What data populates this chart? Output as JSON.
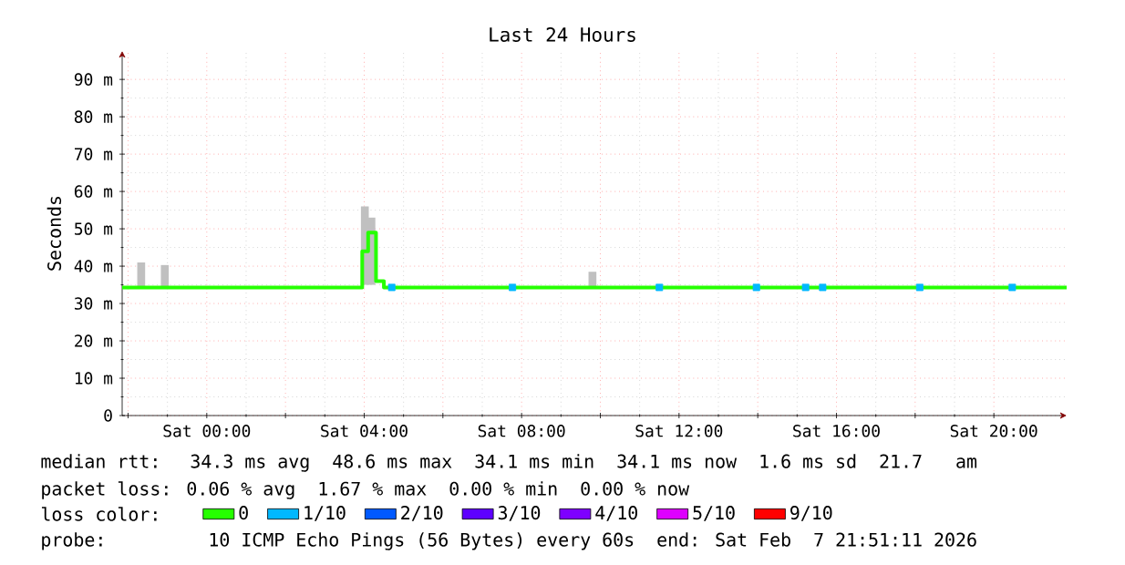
{
  "chart_data": {
    "type": "line",
    "title": "Last 24 Hours",
    "ylabel": "Seconds",
    "xlim": [
      "2026-02-06T21:51",
      "2026-02-07T21:51"
    ],
    "ylim": [
      0,
      97.6
    ],
    "xticks": [
      {
        "value": "2026-02-06T22:00",
        "label": null
      },
      {
        "value": "2026-02-07T00:00",
        "label": "Sat 00:00"
      },
      {
        "value": "2026-02-07T02:00",
        "label": null
      },
      {
        "value": "2026-02-07T04:00",
        "label": "Sat 04:00"
      },
      {
        "value": "2026-02-07T06:00",
        "label": null
      },
      {
        "value": "2026-02-07T08:00",
        "label": "Sat 08:00"
      },
      {
        "value": "2026-02-07T10:00",
        "label": null
      },
      {
        "value": "2026-02-07T12:00",
        "label": "Sat 12:00"
      },
      {
        "value": "2026-02-07T14:00",
        "label": null
      },
      {
        "value": "2026-02-07T16:00",
        "label": "Sat 16:00"
      },
      {
        "value": "2026-02-07T18:00",
        "label": null
      },
      {
        "value": "2026-02-07T20:00",
        "label": "Sat 20:00"
      }
    ],
    "yticks": [
      {
        "value": 0,
        "label": "0"
      },
      {
        "value": 10,
        "label": "10 m"
      },
      {
        "value": 20,
        "label": "20 m"
      },
      {
        "value": 30,
        "label": "30 m"
      },
      {
        "value": 40,
        "label": "40 m"
      },
      {
        "value": 50,
        "label": "50 m"
      },
      {
        "value": 60,
        "label": "60 m"
      },
      {
        "value": 70,
        "label": "70 m"
      },
      {
        "value": 80,
        "label": "80 m"
      },
      {
        "value": 90,
        "label": "90 m"
      }
    ],
    "grid": true,
    "legend": "bottom",
    "series": [
      {
        "type": "bar",
        "color": "#c0c0c0",
        "x": [
          "2026-02-06T22:20",
          "2026-02-06T22:56",
          "2026-02-07T04:01",
          "2026-02-07T04:11",
          "2026-02-07T09:48"
        ],
        "base": [
          34.3,
          34.3,
          35,
          35,
          34.3
        ],
        "values": [
          6.7,
          6,
          21,
          18,
          4.2
        ]
      },
      {
        "name": "0",
        "color": "#26ff00",
        "x": [
          "2026-02-06T21:51",
          "2026-02-07T03:57",
          "2026-02-07T03:57",
          "2026-02-07T04:06",
          "2026-02-07T04:06",
          "2026-02-07T04:18",
          "2026-02-07T04:18",
          "2026-02-07T04:30",
          "2026-02-07T04:30",
          "2026-02-07T21:51"
        ],
        "values": [
          34.3,
          34.3,
          44,
          44,
          49,
          49,
          36,
          36,
          34.3,
          34.3
        ]
      },
      {
        "name": "1/10",
        "type": "scatter",
        "marker": "square",
        "color": "#00b8ff",
        "x": [
          "2026-02-07T04:42",
          "2026-02-07T07:46",
          "2026-02-07T11:30",
          "2026-02-07T13:58",
          "2026-02-07T15:13",
          "2026-02-07T15:39",
          "2026-02-07T18:07",
          "2026-02-07T20:28"
        ],
        "values": [
          34.3,
          34.3,
          34.3,
          34.3,
          34.3,
          34.3,
          34.3,
          34.3
        ]
      },
      {
        "name": "2/10",
        "color": "#0059ff"
      },
      {
        "name": "3/10",
        "color": "#5e00ff"
      },
      {
        "name": "4/10",
        "color": "#7e00ff"
      },
      {
        "name": "5/10",
        "color": "#dd00ff"
      },
      {
        "name": "9/10",
        "color": "#ff0000"
      }
    ],
    "annotations": [
      "median rtt:  34.3 ms avg  48.6 ms max  34.1 ms min  34.1 ms now  1.6 ms sd  21.7   am",
      "packet loss: 0.06 % avg  1.67 % max  0.00 % min  0.00 % now",
      "loss color:",
      "probe:       10 ICMP Echo Pings (56 Bytes) every 60s  end: Sat Feb  7 21:51:11 2026"
    ]
  }
}
